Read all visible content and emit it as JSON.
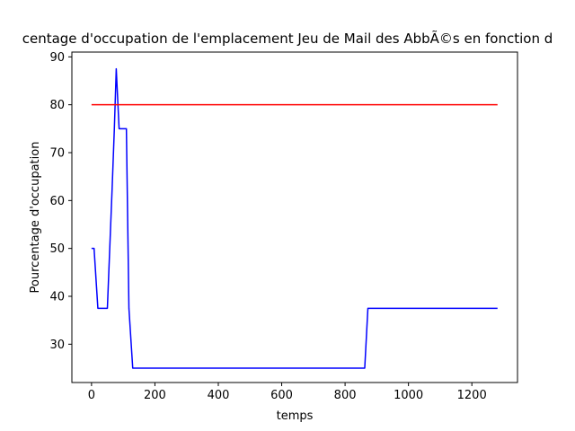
{
  "chart_data": {
    "type": "line",
    "title": "centage d'occupation de l'emplacement Jeu de Mail des AbbÃ©s en fonction d",
    "xlabel": "temps",
    "ylabel": "Pourcentage d'occupation",
    "xlim": [
      -62,
      1344
    ],
    "ylim": [
      22,
      91
    ],
    "xticks": [
      0,
      200,
      400,
      600,
      800,
      1000,
      1200
    ],
    "yticks": [
      30,
      40,
      50,
      60,
      70,
      80,
      90
    ],
    "grid": false,
    "series": [
      {
        "color": "#0000ff",
        "x": [
          0,
          8,
          20,
          30,
          50,
          65,
          72,
          78,
          87,
          95,
          110,
          118,
          130,
          140,
          200,
          400,
          600,
          800,
          862,
          872,
          900,
          1000,
          1100,
          1200,
          1281
        ],
        "y": [
          50,
          50,
          37.5,
          37.5,
          37.5,
          62.5,
          75,
          87.5,
          75,
          75,
          75,
          37.5,
          25,
          25,
          25,
          25,
          25,
          25,
          25,
          37.5,
          37.5,
          37.5,
          37.5,
          37.5,
          37.5
        ]
      },
      {
        "color": "#ff0000",
        "x": [
          0,
          1281
        ],
        "y": [
          80,
          80
        ]
      }
    ]
  }
}
